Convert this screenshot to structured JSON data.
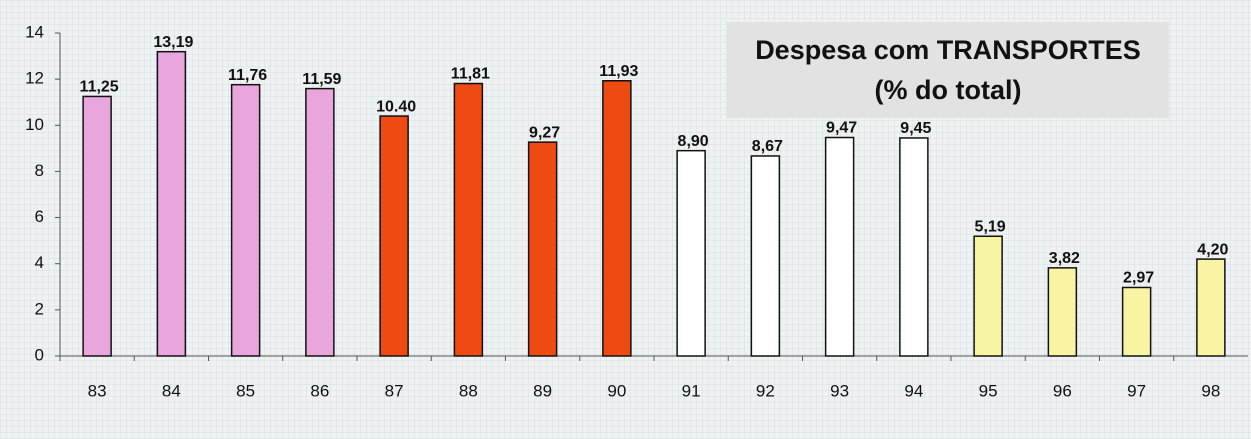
{
  "chart_data": {
    "type": "bar",
    "title": "Despesa com TRANSPORTES (% do total)",
    "categories": [
      "83",
      "84",
      "85",
      "86",
      "87",
      "88",
      "89",
      "90",
      "91",
      "92",
      "93",
      "94",
      "95",
      "96",
      "97",
      "98"
    ],
    "values": [
      11.25,
      13.19,
      11.76,
      11.59,
      10.4,
      11.81,
      9.27,
      11.93,
      8.9,
      8.67,
      9.47,
      9.45,
      5.19,
      3.82,
      2.97,
      4.2
    ],
    "value_labels": [
      "11,25",
      "13,19",
      "11,76",
      "11,59",
      "10.40",
      "11,81",
      "9,27",
      "11,93",
      "8,90",
      "8,67",
      "9,47",
      "9,45",
      "5,19",
      "3,82",
      "2,97",
      "4,20"
    ],
    "colors": [
      "#e8a6dc",
      "#e8a6dc",
      "#e8a6dc",
      "#e8a6dc",
      "#ee4a12",
      "#ee4a12",
      "#ee4a12",
      "#ee4a12",
      "#ffffff",
      "#ffffff",
      "#ffffff",
      "#ffffff",
      "#f8f4a4",
      "#f8f4a4",
      "#f8f4a4",
      "#f8f4a4"
    ],
    "ylim": [
      0,
      14
    ],
    "yticks": [
      0,
      2,
      4,
      6,
      8,
      10,
      12,
      14
    ],
    "grid": false
  }
}
